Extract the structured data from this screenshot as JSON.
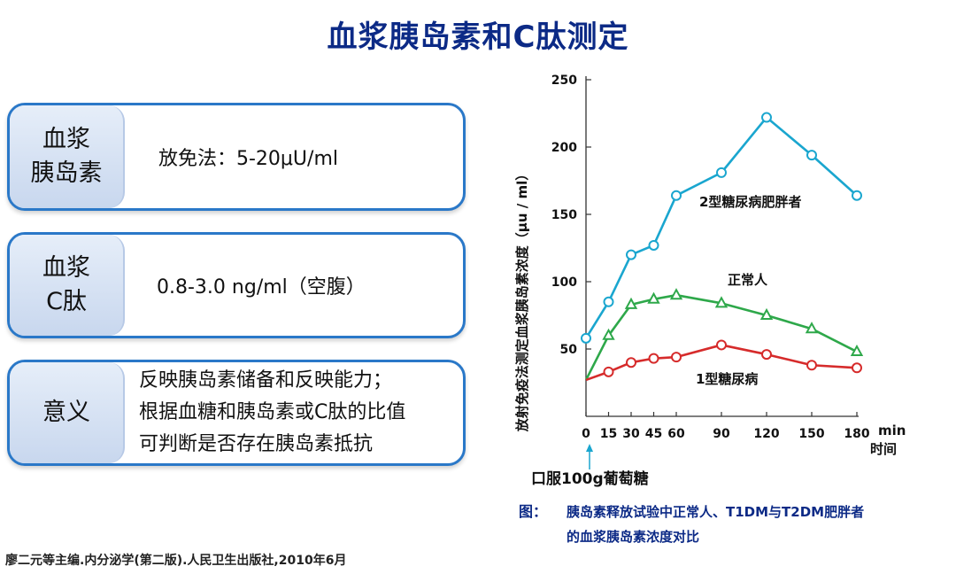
{
  "title": "血浆胰岛素和C肽测定",
  "cards": [
    {
      "label1": "血浆",
      "label2": "胰岛素",
      "text": "放免法：5-20μU/ml"
    },
    {
      "label1": "血浆",
      "label2": "C肽",
      "text": "0.8-3.0 ng/ml（空腹）"
    },
    {
      "label1": "意义",
      "lines": [
        "反映胰岛素储备和反映能力；",
        "根据血糖和胰岛素或C肽的比值",
        "可判断是否存在胰岛素抵抗"
      ]
    }
  ],
  "chart_data": {
    "type": "line",
    "ylabel": "放射免疫法测定血浆胰岛素浓度（μu / ml）",
    "xunit": "min",
    "xlabel": "时间",
    "x": [
      0,
      15,
      30,
      45,
      60,
      90,
      120,
      150,
      180
    ],
    "ylim": [
      0,
      250
    ],
    "yticks": [
      50,
      100,
      150,
      200,
      250
    ],
    "series": [
      {
        "name": "2型糖尿病肥胖者",
        "color": "#1aa6cf",
        "marker": "circle",
        "x": [
          0,
          15,
          30,
          45,
          60,
          90,
          120,
          150,
          180
        ],
        "values": [
          58,
          85,
          120,
          127,
          164,
          181,
          222,
          194,
          164
        ]
      },
      {
        "name": "正常人",
        "color": "#2ea84a",
        "marker": "triangle",
        "x": [
          0,
          15,
          30,
          45,
          60,
          90,
          120,
          150,
          180
        ],
        "values": [
          27,
          60,
          83,
          87,
          90,
          84,
          75,
          65,
          48
        ]
      },
      {
        "name": "1型糖尿病",
        "color": "#d62b2b",
        "marker": "circle",
        "x": [
          0,
          15,
          30,
          45,
          60,
          90,
          120,
          150,
          180
        ],
        "values": [
          27,
          33,
          40,
          43,
          44,
          53,
          46,
          38,
          36
        ]
      }
    ],
    "annotation": "口服100g葡萄糖",
    "caption_label": "图：",
    "caption_line1": "胰岛素释放试验中正常人、T1DM与T2DM肥胖者",
    "caption_line2": "的血浆胰岛素浓度对比"
  },
  "footer": "廖二元等主编.内分泌学(第二版).人民卫生出版社,2010年6月"
}
